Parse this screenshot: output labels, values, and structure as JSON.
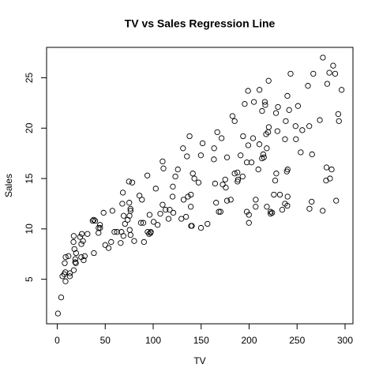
{
  "chart_data": {
    "type": "scatter",
    "title": "TV vs Sales Regression Line",
    "xlabel": "TV",
    "ylabel": "Sales",
    "xlim": [
      -11.12,
      308.22
    ],
    "ylim": [
      0.584,
      28.016
    ],
    "xticks": [
      0,
      50,
      100,
      150,
      200,
      250,
      300
    ],
    "yticks": [
      5,
      10,
      15,
      20,
      25
    ],
    "color": "#000000",
    "x": [
      230.1,
      44.5,
      17.2,
      151.5,
      180.8,
      8.7,
      57.5,
      120.2,
      8.6,
      199.8,
      66.1,
      214.7,
      23.8,
      97.5,
      204.1,
      195.4,
      67.8,
      281.4,
      69.2,
      147.3,
      218.4,
      237.4,
      13.2,
      228.3,
      62.3,
      262.9,
      142.9,
      240.1,
      248.8,
      70.6,
      292.9,
      112.9,
      97.2,
      265.6,
      95.7,
      290.7,
      266.9,
      74.7,
      43.1,
      228,
      202.5,
      177,
      293.6,
      206.9,
      25.1,
      175.1,
      89.7,
      239.9,
      227.2,
      66.9,
      199.8,
      100.4,
      216.4,
      182.6,
      262.7,
      198.9,
      7.3,
      136.2,
      210.8,
      210.7,
      53.5,
      261.3,
      239.3,
      102.7,
      131.1,
      69,
      31.5,
      139.3,
      237.4,
      216.8,
      199.1,
      109.8,
      26.8,
      129.4,
      213.4,
      16.9,
      27.5,
      120.5,
      5.4,
      116,
      76.4,
      239.8,
      75.3,
      68.4,
      213.5,
      193.2,
      76.3,
      110.7,
      88.3,
      109.8,
      134.3,
      28.6,
      217.7,
      250.9,
      107.4,
      163.3,
      197.6,
      184.9,
      289.7,
      135.2,
      222.4,
      296.4,
      280.2,
      187.9,
      238.2,
      137.9,
      25,
      90.4,
      13.1,
      255.4,
      225.8,
      241.7,
      175.7,
      209.6,
      78.2,
      75.1,
      139.2,
      76.4,
      125.7,
      19.4,
      141.3,
      18.8,
      224,
      123.1,
      229.5,
      87.2,
      7.8,
      80.2,
      220.3,
      59.6,
      0.7,
      265.2,
      8.4,
      219.8,
      36.9,
      48.3,
      25.6,
      273.7,
      43,
      184.9,
      73.4,
      193.7,
      220.5,
      104.6,
      96.2,
      140.3,
      240.1,
      243.2,
      38,
      44.7,
      280.7,
      121,
      197.6,
      171.3,
      187.8,
      4.1,
      93.9,
      149.8,
      11.7,
      131.7,
      172.5,
      85.7,
      188.4,
      163.5,
      117.2,
      234.5,
      17.9,
      206.8,
      215.4,
      284.3,
      50,
      164.5,
      19.6,
      168.4,
      222.4,
      276.9,
      248.4,
      170.2,
      276.7,
      165.6,
      156.6,
      218.5,
      56.2,
      287.6,
      253.8,
      205,
      139.5,
      191.1,
      286,
      18.7,
      39.5,
      75.5,
      17.2,
      166.8,
      149.7,
      38.2,
      94.2,
      177,
      283.6,
      232.1
    ],
    "values": [
      22.1,
      10.4,
      9.3,
      18.5,
      12.9,
      7.2,
      11.8,
      13.2,
      4.8,
      10.6,
      8.6,
      17.4,
      9.2,
      9.7,
      19,
      22.4,
      12.5,
      24.4,
      11.3,
      14.6,
      18,
      12.5,
      5.6,
      15.5,
      9.7,
      12,
      15,
      15.9,
      18.9,
      10.5,
      21.4,
      11.9,
      9.6,
      17.4,
      9.5,
      12.8,
      25.4,
      14.7,
      10.1,
      21.5,
      16.6,
      17.1,
      20.7,
      12.9,
      8.5,
      14.9,
      10.6,
      23.2,
      14.8,
      9.7,
      11.4,
      10.7,
      22.6,
      21.2,
      20.2,
      23.7,
      5.5,
      13.2,
      23.8,
      18.4,
      8.1,
      24.2,
      15.7,
      14,
      18,
      9.3,
      9.5,
      13.4,
      18.9,
      22.3,
      18.3,
      12.4,
      8.8,
      11,
      17,
      8.7,
      6.9,
      14.2,
      5.3,
      11,
      11.8,
      12.3,
      11.3,
      13.6,
      21.7,
      15.2,
      12,
      16,
      12.9,
      16.7,
      11.2,
      7.3,
      19.4,
      22.2,
      11.5,
      16.9,
      11.7,
      15.5,
      25.4,
      17.2,
      11.7,
      23.8,
      14.8,
      14.7,
      20.7,
      19.2,
      7.2,
      8.7,
      5.3,
      19.8,
      13.4,
      21.8,
      14.1,
      15.9,
      14.6,
      12.6,
      12.2,
      9.4,
      15.9,
      6.6,
      15.5,
      7,
      11.6,
      15.2,
      19.7,
      10.6,
      6.6,
      8.8,
      24.7,
      9.7,
      1.6,
      12.7,
      5.7,
      19.6,
      10.8,
      11.6,
      9.5,
      20.8,
      9.6,
      20.7,
      10.9,
      19.2,
      20.1,
      10.4,
      11.4,
      10.3,
      13.2,
      25.4,
      10.9,
      10.1,
      16.1,
      11.6,
      16.6,
      19,
      15.6,
      3.2,
      15.3,
      10.1,
      7.3,
      12.9,
      14.4,
      13.3,
      14.9,
      18,
      11.9,
      11.9,
      8,
      12.2,
      17.1,
      15,
      8.4,
      14.5,
      7.6,
      11.7,
      11.5,
      27,
      20.2,
      11.7,
      11.8,
      12.6,
      10.5,
      12.2,
      8.7,
      26.2,
      17.6,
      22.6,
      10.3,
      17.3,
      15.9,
      6.7,
      10.8,
      9.9,
      5.9,
      19.6,
      17.3,
      7.6,
      9.7,
      12.8,
      25.5,
      13.4
    ]
  }
}
